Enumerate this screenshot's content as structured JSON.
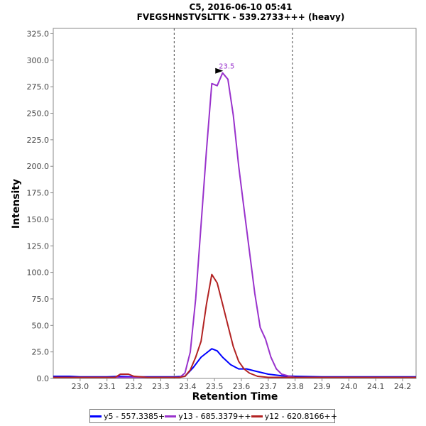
{
  "chart_data": {
    "type": "line",
    "title": "C5, 2016-06-10 05:41",
    "subtitle": "FVEGSHNSTVSLTTK - 539.2733+++ (heavy)",
    "xlabel": "Retention Time",
    "ylabel": "Intensity",
    "xlim": [
      22.9,
      24.25
    ],
    "ylim": [
      0,
      330
    ],
    "x_ticks": [
      "23.0",
      "23.1",
      "23.2",
      "23.3",
      "23.4",
      "23.5",
      "23.6",
      "23.7",
      "23.8",
      "23.9",
      "24.0",
      "24.1",
      "24.2"
    ],
    "y_ticks": [
      "0.0",
      "25.0",
      "50.0",
      "75.0",
      "100.0",
      "125.0",
      "150.0",
      "175.0",
      "200.0",
      "225.0",
      "250.0",
      "275.0",
      "300.0",
      "325.0"
    ],
    "grid": false,
    "legend_position": "bottom",
    "integration_bounds": [
      23.35,
      23.79
    ],
    "peak_annotation": {
      "x": 23.54,
      "y": 288,
      "label": "23.5",
      "color": "#9932cc"
    },
    "series": [
      {
        "name": "y5 - 557.3385+",
        "color": "#0000ff",
        "points": [
          [
            22.9,
            2
          ],
          [
            22.96,
            2
          ],
          [
            23.0,
            1.5
          ],
          [
            23.1,
            1.5
          ],
          [
            23.15,
            2
          ],
          [
            23.2,
            1.5
          ],
          [
            23.3,
            1.5
          ],
          [
            23.35,
            1.5
          ],
          [
            23.39,
            2
          ],
          [
            23.42,
            10
          ],
          [
            23.45,
            20
          ],
          [
            23.47,
            24
          ],
          [
            23.49,
            28
          ],
          [
            23.51,
            26
          ],
          [
            23.53,
            20
          ],
          [
            23.56,
            13
          ],
          [
            23.59,
            9
          ],
          [
            23.62,
            9
          ],
          [
            23.65,
            7
          ],
          [
            23.7,
            4
          ],
          [
            23.75,
            2.5
          ],
          [
            23.8,
            2
          ],
          [
            23.9,
            1.5
          ],
          [
            24.0,
            1.5
          ],
          [
            24.1,
            1.5
          ],
          [
            24.2,
            1.5
          ],
          [
            24.25,
            1.5
          ]
        ]
      },
      {
        "name": "y13 - 685.3379++",
        "color": "#9932cc",
        "points": [
          [
            22.9,
            1
          ],
          [
            23.0,
            1
          ],
          [
            23.1,
            1
          ],
          [
            23.2,
            1
          ],
          [
            23.3,
            1
          ],
          [
            23.37,
            1
          ],
          [
            23.39,
            5
          ],
          [
            23.41,
            25
          ],
          [
            23.43,
            75
          ],
          [
            23.45,
            145
          ],
          [
            23.47,
            215
          ],
          [
            23.49,
            278
          ],
          [
            23.51,
            276
          ],
          [
            23.53,
            288
          ],
          [
            23.55,
            282
          ],
          [
            23.57,
            248
          ],
          [
            23.59,
            200
          ],
          [
            23.61,
            160
          ],
          [
            23.63,
            120
          ],
          [
            23.65,
            80
          ],
          [
            23.67,
            48
          ],
          [
            23.69,
            37
          ],
          [
            23.71,
            20
          ],
          [
            23.73,
            9
          ],
          [
            23.75,
            4
          ],
          [
            23.78,
            2
          ],
          [
            23.8,
            1
          ],
          [
            23.9,
            1
          ],
          [
            24.0,
            1
          ],
          [
            24.1,
            1
          ],
          [
            24.2,
            1
          ],
          [
            24.25,
            1
          ]
        ]
      },
      {
        "name": "y12 - 620.8166++",
        "color": "#b22222",
        "points": [
          [
            22.9,
            1
          ],
          [
            23.0,
            1
          ],
          [
            23.1,
            1
          ],
          [
            23.13,
            1
          ],
          [
            23.15,
            4
          ],
          [
            23.18,
            4
          ],
          [
            23.2,
            2
          ],
          [
            23.25,
            1
          ],
          [
            23.3,
            1
          ],
          [
            23.37,
            1
          ],
          [
            23.39,
            2
          ],
          [
            23.41,
            8
          ],
          [
            23.43,
            20
          ],
          [
            23.45,
            35
          ],
          [
            23.47,
            70
          ],
          [
            23.49,
            98
          ],
          [
            23.51,
            90
          ],
          [
            23.53,
            70
          ],
          [
            23.55,
            50
          ],
          [
            23.57,
            30
          ],
          [
            23.59,
            16
          ],
          [
            23.61,
            9
          ],
          [
            23.63,
            5
          ],
          [
            23.66,
            2
          ],
          [
            23.7,
            1
          ],
          [
            23.8,
            1
          ],
          [
            23.9,
            1
          ],
          [
            24.0,
            1
          ],
          [
            24.1,
            1
          ],
          [
            24.2,
            1
          ],
          [
            24.25,
            1
          ]
        ]
      }
    ]
  }
}
